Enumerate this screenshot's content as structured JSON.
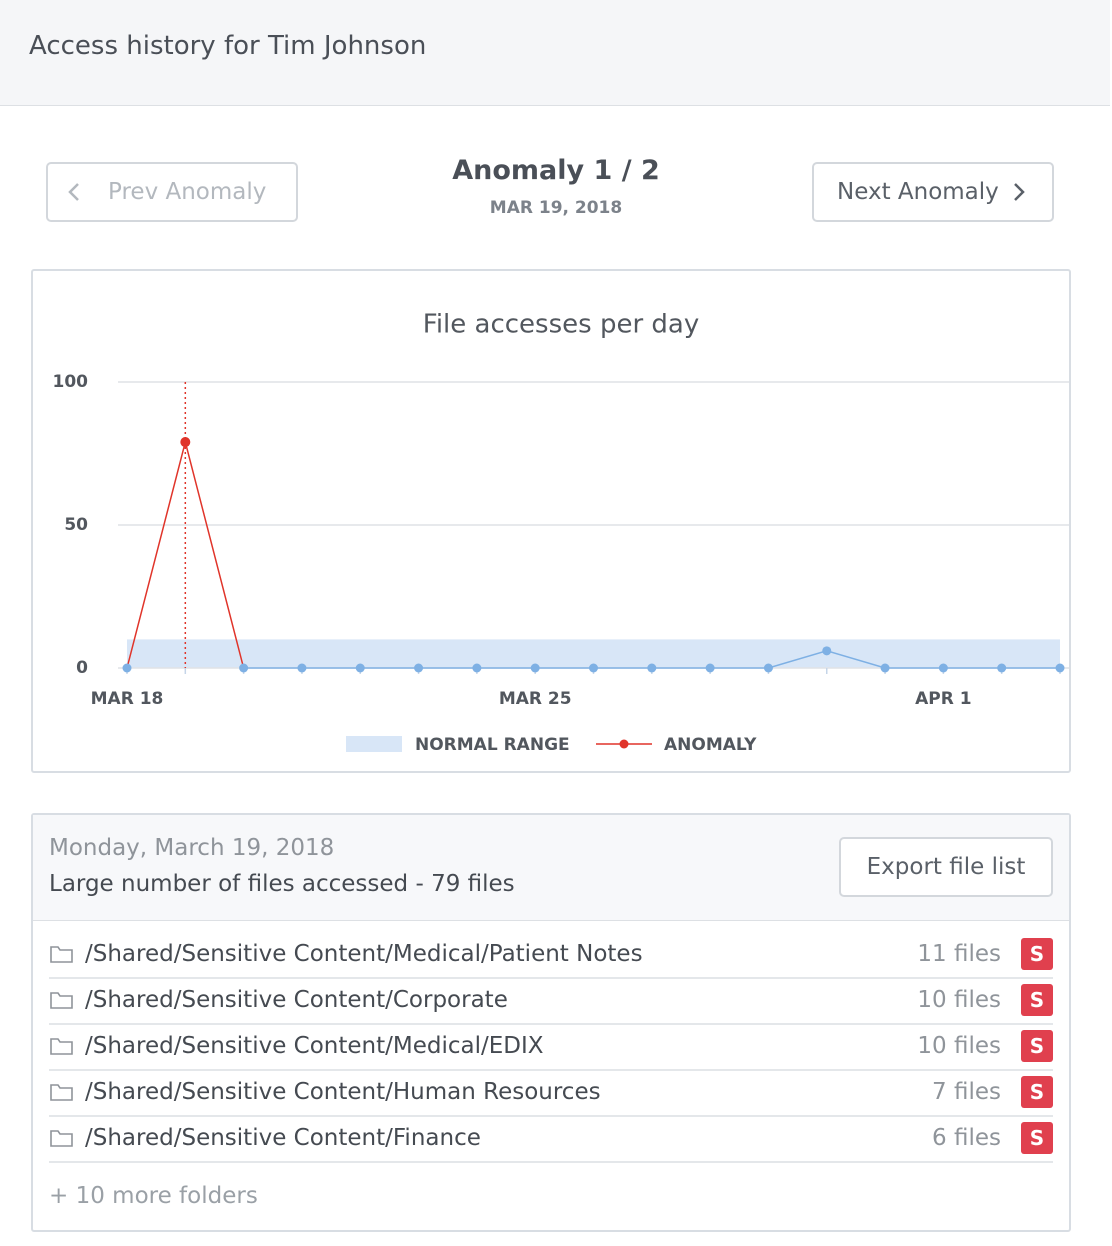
{
  "header": {
    "title": "Access history for Tim Johnson"
  },
  "navigation": {
    "prev": "Prev Anomaly",
    "next": "Next Anomaly",
    "counter": "Anomaly 1 / 2",
    "date": "MAR 19, 2018"
  },
  "chart_data": {
    "type": "line",
    "title": "File accesses per day",
    "categories": [
      "MAR 18",
      null,
      null,
      null,
      null,
      null,
      null,
      "MAR 25",
      null,
      null,
      null,
      null,
      null,
      null,
      "APR 1",
      null,
      null
    ],
    "values": [
      0,
      79,
      0,
      0,
      0,
      0,
      0,
      0,
      0,
      0,
      0,
      0,
      6,
      0,
      0,
      0,
      0
    ],
    "color": "#7eb0e4",
    "normal_range": {
      "name": "NORMAL RANGE",
      "values": [
        0,
        10
      ],
      "color": "#d8e6f7"
    },
    "anomaly": {
      "name": "ANOMALY",
      "index": 1,
      "color": "#e0342a"
    },
    "ylim": [
      0,
      100
    ],
    "yticks": [
      0,
      50,
      100
    ],
    "grid": true
  },
  "details": {
    "day": "Monday, March 19, 2018",
    "summary": "Large number of files accessed - 79 files",
    "export": "Export file list",
    "folders": [
      {
        "path": "/Shared/Sensitive Content/Medical/Patient Notes",
        "count": "11 files",
        "badge": "S"
      },
      {
        "path": "/Shared/Sensitive Content/Corporate",
        "count": "10 files",
        "badge": "S"
      },
      {
        "path": "/Shared/Sensitive Content/Medical/EDIX",
        "count": "10 files",
        "badge": "S"
      },
      {
        "path": "/Shared/Sensitive Content/Human Resources",
        "count": "7 files",
        "badge": "S"
      },
      {
        "path": "/Shared/Sensitive Content/Finance",
        "count": "6 files",
        "badge": "S"
      }
    ],
    "more": "+ 10 more folders"
  }
}
